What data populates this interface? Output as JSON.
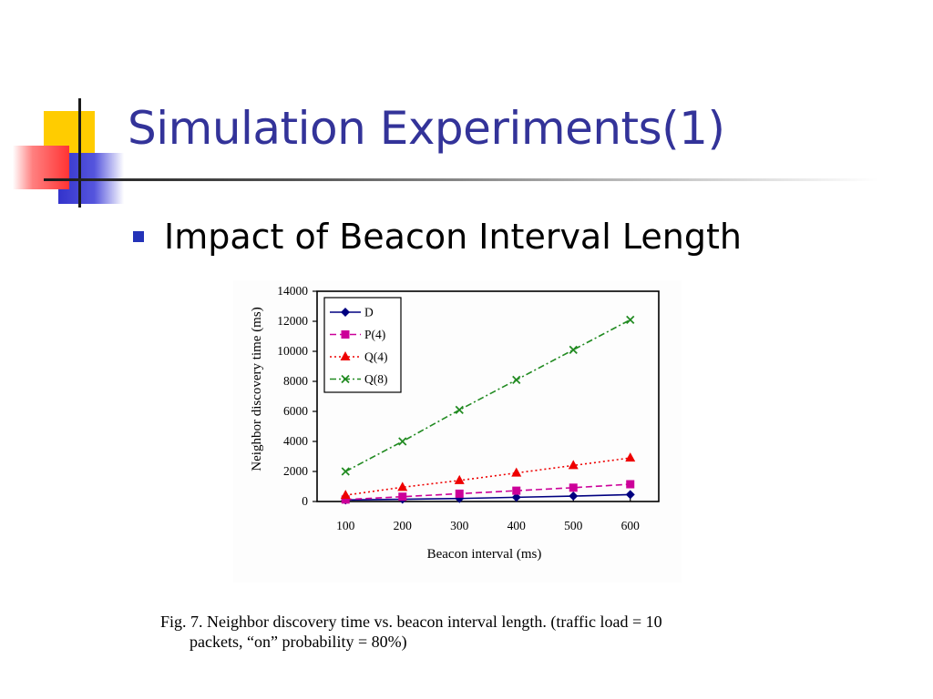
{
  "slide": {
    "title": "Simulation Experiments(1)",
    "bullet": "Impact of Beacon Interval Length",
    "caption_line1": "Fig. 7.   Neighbor discovery time vs.  beacon interval length.  (traffic load = 10",
    "caption_line2": "packets, “on” probability = 80%)",
    "colors": {
      "title": "#333399",
      "bullet": "#2433b8",
      "deco_yellow": "#ffcc00",
      "deco_blue": "#3333cc",
      "deco_red": "#ff3333"
    }
  },
  "chart_data": {
    "type": "line",
    "title": "",
    "xlabel": "Beacon interval (ms)",
    "ylabel": "Neighbor discovery time (ms)",
    "x": [
      100,
      200,
      300,
      400,
      500,
      600
    ],
    "ylim": [
      0,
      14000
    ],
    "yticks": [
      0,
      2000,
      4000,
      6000,
      8000,
      10000,
      12000,
      14000
    ],
    "legend_position": "top-left",
    "grid": false,
    "series": [
      {
        "name": "D",
        "values": [
          100,
          150,
          200,
          280,
          360,
          460
        ],
        "color": "#000080",
        "marker": "diamond",
        "dash": "solid"
      },
      {
        "name": "P(4)",
        "values": [
          130,
          320,
          520,
          720,
          920,
          1150
        ],
        "color": "#cc0099",
        "marker": "square",
        "dash": "dashed"
      },
      {
        "name": "Q(4)",
        "values": [
          420,
          950,
          1400,
          1900,
          2400,
          2900
        ],
        "color": "#ee0000",
        "marker": "triangle",
        "dash": "dotted"
      },
      {
        "name": "Q(8)",
        "values": [
          2000,
          4000,
          6100,
          8100,
          10100,
          12100
        ],
        "color": "#228b22",
        "marker": "x",
        "dash": "dashdot"
      }
    ]
  }
}
